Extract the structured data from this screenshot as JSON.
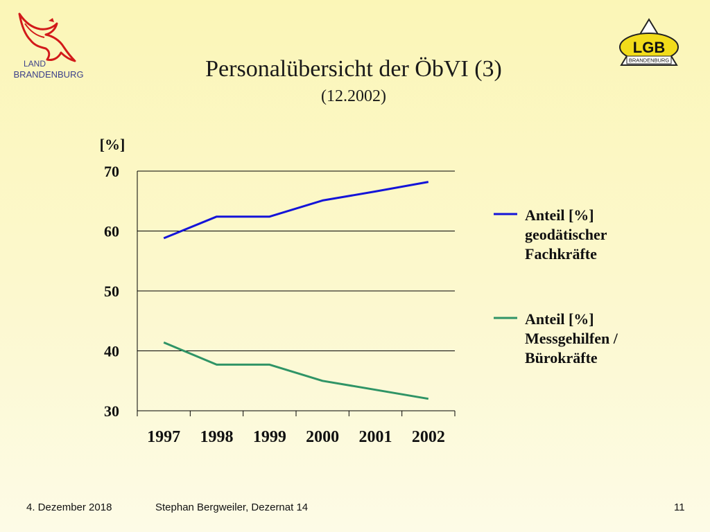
{
  "logos": {
    "left": {
      "line1": "LAND",
      "line2": "BRANDENBURG"
    },
    "right": {
      "main": "LGB",
      "sub": "BRANDENBURG"
    }
  },
  "header": {
    "title": "Personalübersicht der ÖbVI (3)",
    "subtitle": "(12.2002)"
  },
  "chart_data": {
    "type": "line",
    "ylabel": "[%]",
    "x": [
      "1997",
      "1998",
      "1999",
      "2000",
      "2001",
      "2002"
    ],
    "ylim": [
      30,
      70
    ],
    "yticks": [
      "30",
      "40",
      "50",
      "60",
      "70"
    ],
    "grid": true,
    "legend_position": "right",
    "series": [
      {
        "name": "Anteil [%] geodätischer Fachkräfte",
        "name_lines": [
          "Anteil [%]",
          "geodätischer",
          "Fachkräfte"
        ],
        "color": "#1414d8",
        "values": [
          58.8,
          62.4,
          62.4,
          65.1,
          66.6,
          68.2
        ]
      },
      {
        "name": "Anteil [%] Messgehilfen / Bürokräfte",
        "name_lines": [
          "Anteil [%]",
          "Messgehilfen /",
          "Bürokräfte"
        ],
        "color": "#2f9466",
        "values": [
          41.4,
          37.7,
          37.7,
          35.0,
          33.5,
          32.0
        ]
      }
    ]
  },
  "footer": {
    "date": "4. Dezember 2018",
    "author": "Stephan Bergweiler, Dezernat 14",
    "page": "11"
  }
}
